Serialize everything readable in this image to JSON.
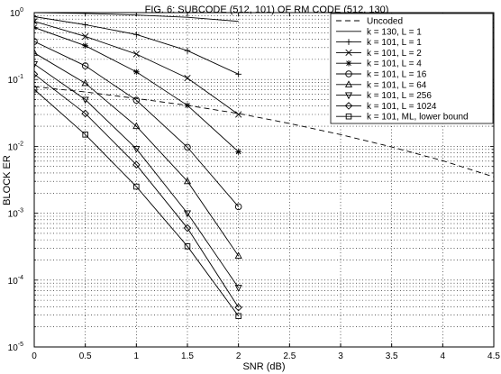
{
  "chart_data": {
    "type": "line",
    "title": "FIG. 6: SUBCODE (512, 101) OF RM CODE (512, 130)",
    "xlabel": "SNR (dB)",
    "ylabel": "BLOCK ER",
    "xlim": [
      0,
      4.5
    ],
    "ylim": [
      1e-05,
      1
    ],
    "yscale": "log",
    "grid": true,
    "legend_position": "top-right",
    "x_ticks": [
      {
        "value": 0,
        "label": "0"
      },
      {
        "value": 0.5,
        "label": "0.5"
      },
      {
        "value": 1,
        "label": "1"
      },
      {
        "value": 1.5,
        "label": "1.5"
      },
      {
        "value": 2,
        "label": "2"
      },
      {
        "value": 2.5,
        "label": "2.5"
      },
      {
        "value": 3,
        "label": "3"
      },
      {
        "value": 3.5,
        "label": "3.5"
      },
      {
        "value": 4,
        "label": "4"
      },
      {
        "value": 4.5,
        "label": "4.5"
      }
    ],
    "y_ticks": [
      {
        "value": 1e-05,
        "base": "10",
        "exp": "-5"
      },
      {
        "value": 0.0001,
        "base": "10",
        "exp": "-4"
      },
      {
        "value": 0.001,
        "base": "10",
        "exp": "-3"
      },
      {
        "value": 0.01,
        "base": "10",
        "exp": "-2"
      },
      {
        "value": 0.1,
        "base": "10",
        "exp": "-1"
      },
      {
        "value": 1,
        "base": "10",
        "exp": "0"
      }
    ],
    "series": [
      {
        "name": "Uncoded",
        "marker": "none",
        "dash": true,
        "x": [
          0,
          0.5,
          1,
          1.5,
          2,
          2.5,
          3,
          3.5,
          4,
          4.5
        ],
        "values": [
          0.078,
          0.065,
          0.052,
          0.041,
          0.031,
          0.022,
          0.015,
          0.0098,
          0.0061,
          0.0035
        ]
      },
      {
        "name": "k = 130, L = 1",
        "marker": "none",
        "dash": false,
        "x": [
          0,
          0.5,
          1,
          1.5,
          2
        ],
        "values": [
          1.0,
          0.97,
          0.92,
          0.85,
          0.74
        ]
      },
      {
        "name": "k = 101, L = 1",
        "marker": "plus",
        "dash": false,
        "x": [
          0,
          0.5,
          1,
          1.5,
          2
        ],
        "values": [
          0.87,
          0.66,
          0.47,
          0.27,
          0.12
        ]
      },
      {
        "name": "k = 101, L = 2",
        "marker": "x",
        "dash": false,
        "x": [
          0,
          0.5,
          1,
          1.5,
          2
        ],
        "values": [
          0.74,
          0.44,
          0.24,
          0.105,
          0.03
        ]
      },
      {
        "name": "k = 101, L = 4",
        "marker": "star",
        "dash": false,
        "x": [
          0,
          0.5,
          1,
          1.5,
          2
        ],
        "values": [
          0.6,
          0.32,
          0.13,
          0.041,
          0.0083
        ]
      },
      {
        "name": "k = 101, L = 16",
        "marker": "circle",
        "dash": false,
        "x": [
          0,
          0.5,
          1,
          1.5,
          2
        ],
        "values": [
          0.37,
          0.16,
          0.049,
          0.0097,
          0.00125
        ]
      },
      {
        "name": "k = 101, L = 64",
        "marker": "triangle-up",
        "dash": false,
        "x": [
          0,
          0.5,
          1,
          1.5,
          2
        ],
        "values": [
          0.25,
          0.088,
          0.02,
          0.003,
          0.00023
        ]
      },
      {
        "name": "k = 101, L = 256",
        "marker": "triangle-down",
        "dash": false,
        "x": [
          0,
          0.5,
          1,
          1.5,
          2
        ],
        "values": [
          0.17,
          0.05,
          0.0092,
          0.001,
          7.7e-05
        ]
      },
      {
        "name": "k = 101, L = 1024",
        "marker": "diamond",
        "dash": false,
        "x": [
          0,
          0.5,
          1,
          1.5,
          2
        ],
        "values": [
          0.12,
          0.031,
          0.0053,
          0.0006,
          3.9e-05
        ]
      },
      {
        "name": "k = 101, ML, lower bound",
        "marker": "square",
        "dash": false,
        "x": [
          0,
          0.5,
          1,
          1.5,
          2
        ],
        "values": [
          0.071,
          0.015,
          0.0025,
          0.00032,
          2.9e-05
        ]
      }
    ]
  }
}
